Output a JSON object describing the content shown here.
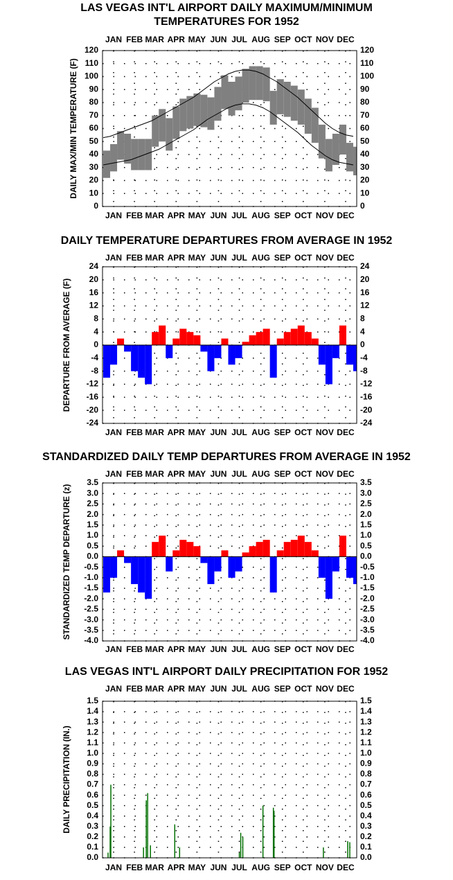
{
  "chart_data": [
    {
      "type": "range",
      "title": [
        "LAS VEGAS INT'L AIRPORT DAILY MAXIMUM/MINIMUM",
        "TEMPERATURES FOR 1952"
      ],
      "y_label": "DAILY MAX/MIN TEMPERATURE (F)",
      "x": [
        1,
        11,
        21,
        31,
        41,
        51,
        61,
        71,
        81,
        91,
        101,
        111,
        121,
        131,
        141,
        151,
        161,
        171,
        181,
        191,
        201,
        211,
        221,
        231,
        241,
        251,
        261,
        271,
        281,
        291,
        301,
        311,
        321,
        331,
        341,
        351,
        361
      ],
      "max": [
        43,
        48,
        58,
        56,
        52,
        52,
        52,
        70,
        75,
        68,
        77,
        83,
        85,
        87,
        86,
        84,
        92,
        101,
        96,
        100,
        106,
        108,
        108,
        107,
        89,
        98,
        96,
        93,
        90,
        83,
        76,
        63,
        52,
        56,
        63,
        49,
        46
      ],
      "min": [
        22,
        27,
        36,
        33,
        28,
        28,
        28,
        46,
        50,
        43,
        52,
        58,
        60,
        62,
        61,
        59,
        66,
        75,
        70,
        74,
        80,
        82,
        82,
        81,
        63,
        71,
        69,
        66,
        63,
        56,
        49,
        37,
        27,
        32,
        40,
        27,
        24
      ],
      "normal_max": [
        53,
        54,
        56,
        58,
        60,
        62,
        64,
        66,
        69,
        72,
        75,
        78,
        81,
        84,
        88,
        92,
        96,
        99,
        102,
        104,
        105,
        105,
        104,
        102,
        99,
        96,
        92,
        88,
        84,
        79,
        74,
        69,
        64,
        60,
        57,
        55,
        54
      ],
      "normal_min": [
        32,
        33,
        34,
        35,
        36,
        38,
        40,
        42,
        44,
        47,
        50,
        53,
        56,
        59,
        63,
        67,
        70,
        73,
        76,
        78,
        79,
        79,
        78,
        76,
        73,
        69,
        65,
        61,
        57,
        52,
        47,
        43,
        39,
        36,
        34,
        33,
        32
      ],
      "color": "#808080",
      "normal_color": "#000000",
      "xlim": [
        0,
        366
      ],
      "xticks": [
        {
          "value": 16,
          "label": "JAN"
        },
        {
          "value": 46,
          "label": "FEB"
        },
        {
          "value": 75,
          "label": "MAR"
        },
        {
          "value": 106,
          "label": "APR"
        },
        {
          "value": 136,
          "label": "MAY"
        },
        {
          "value": 167,
          "label": "JUN"
        },
        {
          "value": 197,
          "label": "JUL"
        },
        {
          "value": 228,
          "label": "AUG"
        },
        {
          "value": 259,
          "label": "SEP"
        },
        {
          "value": 289,
          "label": "OCT"
        },
        {
          "value": 320,
          "label": "NOV"
        },
        {
          "value": 350,
          "label": "DEC"
        }
      ],
      "ylim": [
        0,
        120
      ],
      "yticks": [
        0,
        10,
        20,
        30,
        40,
        50,
        60,
        70,
        80,
        90,
        100,
        110,
        120
      ],
      "grid": true
    },
    {
      "type": "bar",
      "title": [
        "DAILY TEMPERATURE DEPARTURES FROM AVERAGE IN 1952"
      ],
      "y_label": "DEPARTURE FROM AVERAGE (F)",
      "x": [
        1,
        11,
        21,
        31,
        41,
        51,
        61,
        71,
        81,
        91,
        101,
        111,
        121,
        131,
        141,
        151,
        161,
        171,
        181,
        191,
        201,
        211,
        221,
        231,
        241,
        251,
        261,
        271,
        281,
        291,
        301,
        311,
        321,
        331,
        341,
        351,
        361
      ],
      "values": [
        -10,
        -6,
        2,
        -2,
        -8,
        -10,
        -12,
        4,
        6,
        -4,
        2,
        5,
        4,
        3,
        -2,
        -8,
        -4,
        2,
        -6,
        -4,
        1,
        3,
        4,
        5,
        -10,
        2,
        4,
        5,
        6,
        4,
        2,
        -6,
        -12,
        -4,
        6,
        -6,
        -8
      ],
      "positive_color": "#ff0000",
      "negative_color": "#0000ff",
      "xlim": [
        0,
        366
      ],
      "xticks": [
        {
          "value": 16,
          "label": "JAN"
        },
        {
          "value": 46,
          "label": "FEB"
        },
        {
          "value": 75,
          "label": "MAR"
        },
        {
          "value": 106,
          "label": "APR"
        },
        {
          "value": 136,
          "label": "MAY"
        },
        {
          "value": 167,
          "label": "JUN"
        },
        {
          "value": 197,
          "label": "JUL"
        },
        {
          "value": 228,
          "label": "AUG"
        },
        {
          "value": 259,
          "label": "SEP"
        },
        {
          "value": 289,
          "label": "OCT"
        },
        {
          "value": 320,
          "label": "NOV"
        },
        {
          "value": 350,
          "label": "DEC"
        }
      ],
      "ylim": [
        -24,
        24
      ],
      "yticks": [
        -24,
        -20,
        -16,
        -12,
        -8,
        -4,
        0,
        4,
        8,
        12,
        16,
        20,
        24
      ],
      "grid": true
    },
    {
      "type": "bar",
      "title": [
        "STANDARDIZED DAILY TEMP DEPARTURES FROM AVERAGE IN 1952"
      ],
      "y_label": "STANDARDIZED TEMP DEPARTURE (z)",
      "x": [
        1,
        11,
        21,
        31,
        41,
        51,
        61,
        71,
        81,
        91,
        101,
        111,
        121,
        131,
        141,
        151,
        161,
        171,
        181,
        191,
        201,
        211,
        221,
        231,
        241,
        251,
        261,
        271,
        281,
        291,
        301,
        311,
        321,
        331,
        341,
        351,
        361
      ],
      "values": [
        -1.7,
        -1.0,
        0.3,
        -0.3,
        -1.3,
        -1.7,
        -2.0,
        0.7,
        1.0,
        -0.7,
        0.3,
        0.8,
        0.7,
        0.5,
        -0.3,
        -1.3,
        -0.7,
        0.3,
        -1.0,
        -0.7,
        0.2,
        0.5,
        0.7,
        0.8,
        -1.7,
        0.3,
        0.7,
        0.8,
        1.0,
        0.7,
        0.3,
        -1.0,
        -2.0,
        -0.7,
        1.0,
        -1.0,
        -1.3
      ],
      "positive_color": "#ff0000",
      "negative_color": "#0000ff",
      "xlim": [
        0,
        366
      ],
      "xticks": [
        {
          "value": 16,
          "label": "JAN"
        },
        {
          "value": 46,
          "label": "FEB"
        },
        {
          "value": 75,
          "label": "MAR"
        },
        {
          "value": 106,
          "label": "APR"
        },
        {
          "value": 136,
          "label": "MAY"
        },
        {
          "value": 167,
          "label": "JUN"
        },
        {
          "value": 197,
          "label": "JUL"
        },
        {
          "value": 228,
          "label": "AUG"
        },
        {
          "value": 259,
          "label": "SEP"
        },
        {
          "value": 289,
          "label": "OCT"
        },
        {
          "value": 320,
          "label": "NOV"
        },
        {
          "value": 350,
          "label": "DEC"
        }
      ],
      "ylim": [
        -4,
        3.5
      ],
      "yticks": [
        {
          "value": -4,
          "label": "-4.0"
        },
        -3.5,
        {
          "value": -3,
          "label": "-3.0"
        },
        -2.5,
        {
          "value": -2,
          "label": "-2.0"
        },
        -1.5,
        {
          "value": -1,
          "label": "-1.0"
        },
        -0.5,
        {
          "value": 0,
          "label": "0.0"
        },
        0.5,
        {
          "value": 1,
          "label": "1.0"
        },
        1.5,
        {
          "value": 2,
          "label": "2.0"
        },
        2.5,
        {
          "value": 3,
          "label": "3.0"
        },
        3.5
      ],
      "grid": true
    },
    {
      "type": "precip",
      "title": [
        "LAS VEGAS INT'L AIRPORT DAILY PRECIPITATION FOR 1952"
      ],
      "y_label": "DAILY PRECIPITATION (IN.)",
      "x": [
        8,
        11,
        12,
        59,
        63,
        65,
        69,
        104,
        111,
        197,
        199,
        202,
        231,
        246,
        247,
        318,
        353,
        356
      ],
      "values": [
        0.05,
        0.3,
        0.7,
        0.1,
        0.55,
        0.62,
        0.12,
        0.32,
        0.1,
        0.05,
        0.24,
        0.2,
        0.5,
        0.48,
        0.45,
        0.1,
        0.16,
        0.15
      ],
      "color": "#007000",
      "xlim": [
        0,
        366
      ],
      "xticks": [
        {
          "value": 16,
          "label": "JAN"
        },
        {
          "value": 46,
          "label": "FEB"
        },
        {
          "value": 75,
          "label": "MAR"
        },
        {
          "value": 106,
          "label": "APR"
        },
        {
          "value": 136,
          "label": "MAY"
        },
        {
          "value": 167,
          "label": "JUN"
        },
        {
          "value": 197,
          "label": "JUL"
        },
        {
          "value": 228,
          "label": "AUG"
        },
        {
          "value": 259,
          "label": "SEP"
        },
        {
          "value": 289,
          "label": "OCT"
        },
        {
          "value": 320,
          "label": "NOV"
        },
        {
          "value": 350,
          "label": "DEC"
        }
      ],
      "ylim": [
        0,
        1.5
      ],
      "yticks": [
        {
          "value": 0,
          "label": "0.0"
        },
        0.1,
        0.2,
        0.3,
        0.4,
        0.5,
        0.6,
        0.7,
        0.8,
        0.9,
        {
          "value": 1,
          "label": "1.0"
        },
        1.1,
        1.2,
        1.3,
        1.4,
        1.5
      ],
      "grid": true
    }
  ]
}
